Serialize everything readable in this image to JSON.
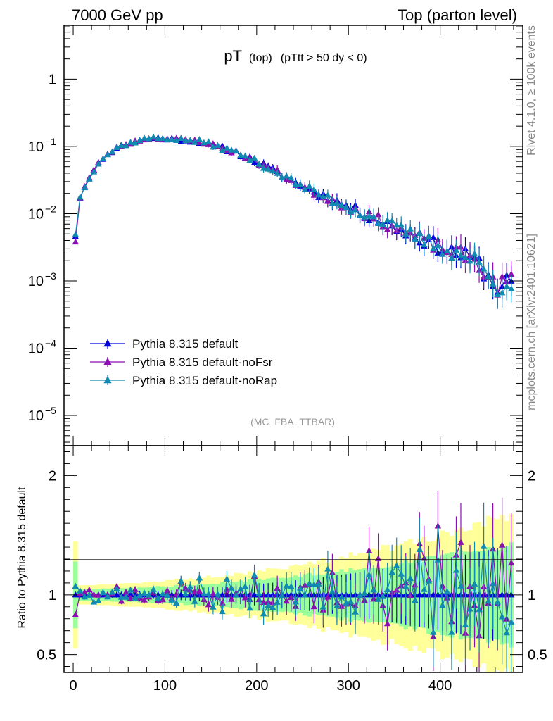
{
  "header": {
    "left": "7000 GeV pp",
    "right": "Top (parton level)"
  },
  "side_labels": {
    "rivet": "Rivet 4.1.0, ≥ 100k events",
    "mcplots": "mcplots.cern.ch [arXiv:2401.10621]"
  },
  "chart_data": {
    "type": "line",
    "title_main": "pT",
    "title_sub": "(top)",
    "title_cut": "(pTtt > 50 dy < 0)",
    "watermark": "(MC_FBA_TTBAR)",
    "ratio_ylabel": "Ratio to Pythia 8.315 default",
    "xlim": [
      -10,
      490
    ],
    "xticks": [
      0,
      100,
      200,
      300,
      400
    ],
    "xtick_labels": [
      "0",
      "100",
      "200",
      "300",
      "400"
    ],
    "top_ylim_log10": [
      -5.45,
      0.8
    ],
    "top_yticks": [
      {
        "exp": 0,
        "label": "1"
      },
      {
        "exp": -1,
        "label": "10",
        "sup": "−1"
      },
      {
        "exp": -2,
        "label": "10",
        "sup": "−2"
      },
      {
        "exp": -3,
        "label": "10",
        "sup": "−3"
      },
      {
        "exp": -4,
        "label": "10",
        "sup": "−4"
      },
      {
        "exp": -5,
        "label": "10",
        "sup": "−5"
      }
    ],
    "ratio_ylim": [
      0.35,
      2.25
    ],
    "ratio_yticks": [
      {
        "v": 0.5,
        "label": "0.5"
      },
      {
        "v": 1,
        "label": "1"
      },
      {
        "v": 2,
        "label": "2"
      }
    ],
    "legend_position": "left-middle",
    "series": [
      {
        "name": "Pythia 8.315 default",
        "color": "#0000dd",
        "marker": "triangle-up",
        "seed": 11,
        "offset": 0.0
      },
      {
        "name": "Pythia 8.315 default-noFsr",
        "color": "#8a0fb0",
        "marker": "triangle-up",
        "seed": 23,
        "offset": -0.08
      },
      {
        "name": "Pythia 8.315 default-noRap",
        "color": "#118ab2",
        "marker": "triangle-up",
        "seed": 37,
        "offset": 0.03
      }
    ],
    "shape": {
      "x_start": 2.5,
      "bin_width": 5,
      "n_points": 96,
      "anchors_log10": [
        {
          "x": 2.5,
          "y": -2.33
        },
        {
          "x": 7.5,
          "y": -1.76
        },
        {
          "x": 15,
          "y": -1.52
        },
        {
          "x": 30,
          "y": -1.2
        },
        {
          "x": 50,
          "y": -1.0
        },
        {
          "x": 80,
          "y": -0.88
        },
        {
          "x": 100,
          "y": -0.88
        },
        {
          "x": 140,
          "y": -0.93
        },
        {
          "x": 180,
          "y": -1.1
        },
        {
          "x": 210,
          "y": -1.3
        },
        {
          "x": 250,
          "y": -1.6
        },
        {
          "x": 300,
          "y": -1.9
        },
        {
          "x": 350,
          "y": -2.2
        },
        {
          "x": 400,
          "y": -2.5
        },
        {
          "x": 440,
          "y": -2.7
        },
        {
          "x": 460,
          "y": -3.1
        },
        {
          "x": 477.5,
          "y": -3.0
        }
      ]
    }
  }
}
